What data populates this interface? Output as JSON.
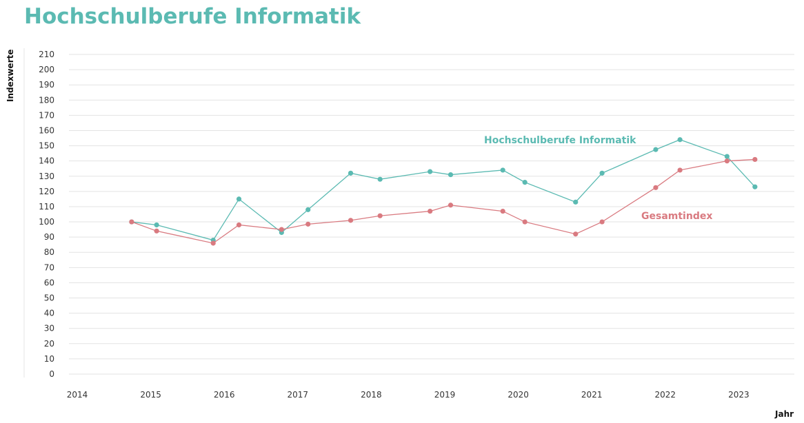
{
  "chart_data": {
    "type": "line",
    "title": "Hochschulberufe Informatik",
    "xlabel": "Jahr",
    "ylabel": "Indexwerte",
    "ylim": [
      0,
      210
    ],
    "xlim": [
      2014,
      2024
    ],
    "yticks": [
      0,
      10,
      20,
      30,
      40,
      50,
      60,
      70,
      80,
      90,
      100,
      110,
      120,
      130,
      140,
      150,
      160,
      170,
      180,
      190,
      200,
      210
    ],
    "xticks": [
      "2014",
      "2015",
      "2016",
      "2017",
      "2018",
      "2019",
      "2020",
      "2021",
      "2022",
      "2023"
    ],
    "grid": true,
    "x": [
      2014.74,
      2015.08,
      2015.85,
      2016.2,
      2016.78,
      2017.14,
      2017.72,
      2018.12,
      2018.8,
      2019.08,
      2019.79,
      2020.09,
      2020.78,
      2021.14,
      2021.87,
      2022.2,
      2022.84,
      2023.22
    ],
    "series": [
      {
        "name": "Hochschulberufe Informatik",
        "color": "#5bbab2",
        "values": [
          100,
          98,
          88,
          115,
          93,
          108,
          132,
          128,
          133,
          131,
          134,
          126,
          113,
          132,
          147.5,
          154,
          143,
          123
        ]
      },
      {
        "name": "Gesamtindex",
        "color": "#d97a80",
        "values": [
          100,
          94,
          86,
          98,
          95,
          98.5,
          101,
          104,
          107,
          111,
          107,
          100,
          92,
          100,
          122.5,
          134,
          140,
          141
        ]
      }
    ]
  }
}
